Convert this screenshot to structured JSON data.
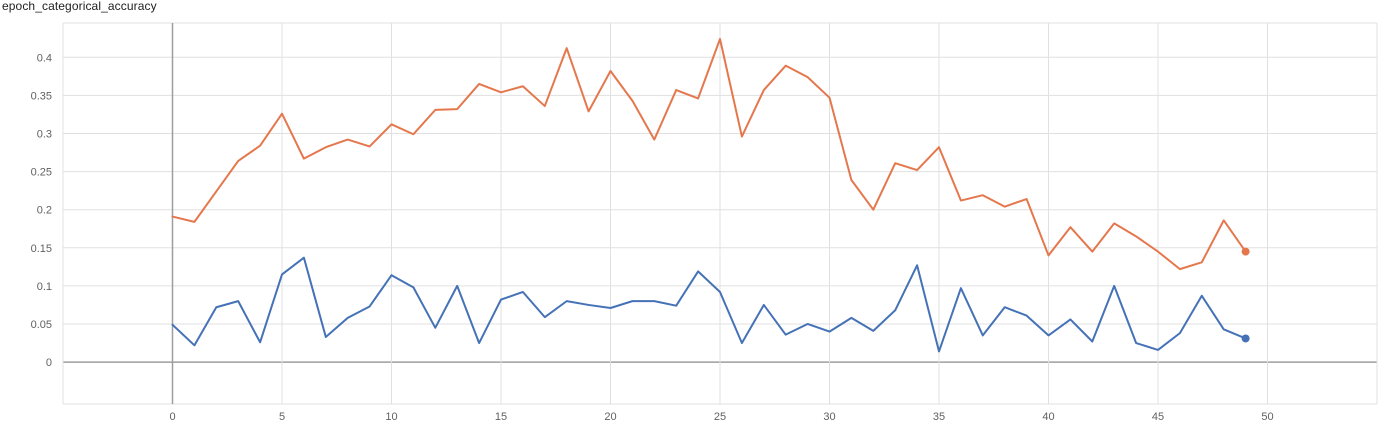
{
  "chart_data": {
    "type": "line",
    "title": "epoch_categorical_accuracy",
    "xlabel": "",
    "ylabel": "",
    "xlim": [
      -5,
      55
    ],
    "ylim": [
      -0.055,
      0.445
    ],
    "x_ticks": [
      0,
      5,
      10,
      15,
      20,
      25,
      30,
      35,
      40,
      45,
      50
    ],
    "y_ticks": [
      0,
      0.05,
      0.1,
      0.15,
      0.2,
      0.25,
      0.3,
      0.35,
      0.4
    ],
    "y_tick_labels": [
      "0",
      "0.05",
      "0.1",
      "0.15",
      "0.2",
      "0.25",
      "0.3",
      "0.35",
      "0.4"
    ],
    "grid": true,
    "x": [
      0,
      1,
      2,
      3,
      4,
      5,
      6,
      7,
      8,
      9,
      10,
      11,
      12,
      13,
      14,
      15,
      16,
      17,
      18,
      19,
      20,
      21,
      22,
      23,
      24,
      25,
      26,
      27,
      28,
      29,
      30,
      31,
      32,
      33,
      34,
      35,
      36,
      37,
      38,
      39,
      40,
      41,
      42,
      43,
      44,
      45,
      46,
      47,
      48,
      49
    ],
    "series": [
      {
        "color": "#e5774d",
        "values": [
          0.191,
          0.184,
          0.224,
          0.264,
          0.284,
          0.326,
          0.267,
          0.282,
          0.292,
          0.283,
          0.312,
          0.299,
          0.331,
          0.332,
          0.365,
          0.354,
          0.362,
          0.336,
          0.412,
          0.329,
          0.382,
          0.343,
          0.292,
          0.357,
          0.346,
          0.424,
          0.296,
          0.357,
          0.389,
          0.374,
          0.347,
          0.239,
          0.2,
          0.261,
          0.252,
          0.282,
          0.212,
          0.219,
          0.204,
          0.214,
          0.14,
          0.177,
          0.145,
          0.182,
          0.165,
          0.145,
          0.122,
          0.131,
          0.186,
          0.145
        ]
      },
      {
        "color": "#4572b6",
        "values": [
          0.049,
          0.022,
          0.072,
          0.08,
          0.026,
          0.115,
          0.137,
          0.033,
          0.058,
          0.073,
          0.114,
          0.098,
          0.045,
          0.1,
          0.025,
          0.082,
          0.092,
          0.059,
          0.08,
          0.075,
          0.071,
          0.08,
          0.08,
          0.074,
          0.119,
          0.092,
          0.025,
          0.075,
          0.036,
          0.05,
          0.04,
          0.058,
          0.041,
          0.068,
          0.127,
          0.014,
          0.097,
          0.035,
          0.072,
          0.061,
          0.035,
          0.056,
          0.027,
          0.1,
          0.025,
          0.016,
          0.038,
          0.087,
          0.043,
          0.031
        ]
      }
    ]
  }
}
